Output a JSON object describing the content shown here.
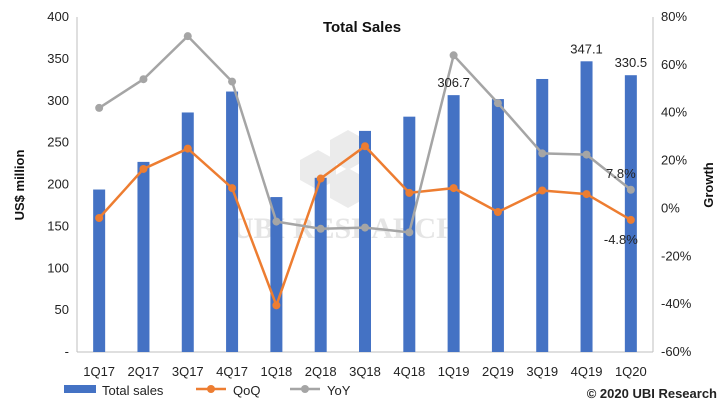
{
  "chart_data": {
    "type": "bar",
    "title": "Total Sales",
    "xlabel": "",
    "ylabel": "US$ million",
    "y2label": "Growth",
    "ylim": [
      0,
      400
    ],
    "yticks": [
      "-",
      "50",
      "100",
      "150",
      "200",
      "250",
      "300",
      "350",
      "400"
    ],
    "y2lim": [
      -60,
      80
    ],
    "y2ticks": [
      "-60%",
      "-40%",
      "-20%",
      "0%",
      "20%",
      "40%",
      "60%",
      "80%"
    ],
    "categories": [
      "1Q17",
      "2Q17",
      "3Q17",
      "4Q17",
      "1Q18",
      "2Q18",
      "3Q18",
      "4Q18",
      "1Q19",
      "2Q19",
      "3Q19",
      "4Q19",
      "1Q20"
    ],
    "series": [
      {
        "name": "Total sales",
        "type": "bar",
        "axis": "left",
        "color": "#4472C4",
        "values": [
          194,
          227,
          286,
          311,
          185,
          208,
          264,
          281,
          306.7,
          302,
          326,
          347.1,
          330.5
        ]
      },
      {
        "name": "QoQ",
        "type": "line",
        "axis": "right",
        "color": "#ED7D31",
        "values": [
          -4,
          16.5,
          25,
          8.5,
          -40.5,
          12.5,
          26,
          6.5,
          8.5,
          -1.5,
          7.5,
          6,
          -4.8
        ]
      },
      {
        "name": "YoY",
        "type": "line",
        "axis": "right",
        "color": "#A5A5A5",
        "values": [
          42,
          54,
          72,
          53,
          -5.5,
          -8.5,
          -8,
          -10,
          64,
          44,
          23,
          22.5,
          7.8
        ]
      }
    ],
    "data_labels": [
      {
        "category": "1Q19",
        "series": "Total sales",
        "text": "306.7"
      },
      {
        "category": "4Q19",
        "series": "Total sales",
        "text": "347.1"
      },
      {
        "category": "1Q20",
        "series": "Total sales",
        "text": "330.5"
      },
      {
        "category": "1Q20",
        "series": "YoY",
        "text": "7.8%"
      },
      {
        "category": "1Q20",
        "series": "QoQ",
        "text": "-4.8%"
      }
    ],
    "legend": {
      "position": "bottom-left",
      "entries": [
        "Total sales",
        "QoQ",
        "YoY"
      ]
    },
    "grid": false
  },
  "watermark_text": "UBI RESEARCH",
  "copyright_text": "© 2020 UBI Research"
}
